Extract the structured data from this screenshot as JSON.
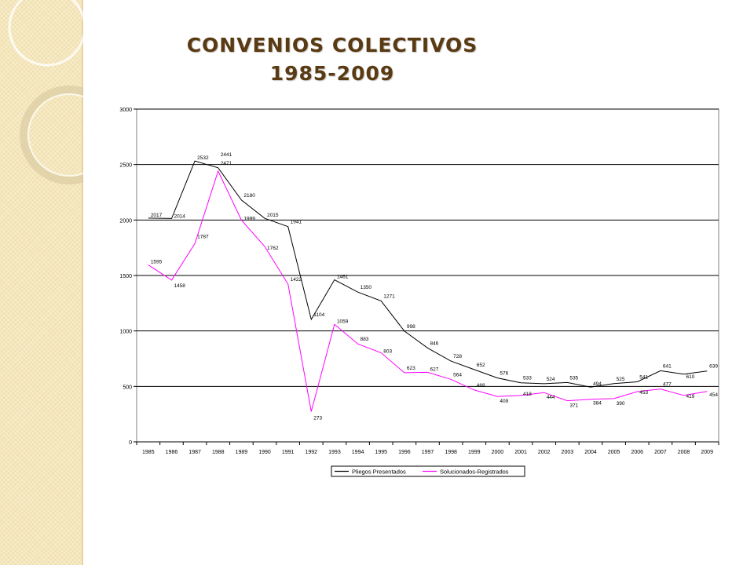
{
  "slide": {
    "title_line1": "CONVENIOS COLECTIVOS",
    "title_line2": "1985-2009"
  },
  "colors": {
    "pliegos": "#000000",
    "solucionados": "#ff00ff",
    "title": "#5a3a12",
    "sidebar": "#f5e7bc"
  },
  "chart_data": {
    "type": "line",
    "title": "",
    "xlabel": "",
    "ylabel": "",
    "ylim": [
      0,
      3000
    ],
    "yticks": [
      0,
      500,
      1000,
      1500,
      2000,
      2500,
      3000
    ],
    "grid": true,
    "legend_position": "bottom",
    "categories": [
      "1985",
      "1986",
      "1987",
      "1988",
      "1989",
      "1990",
      "1991",
      "1992",
      "1993",
      "1994",
      "1995",
      "1996",
      "1997",
      "1998",
      "1999",
      "2000",
      "2001",
      "2002",
      "2003",
      "2004",
      "2005",
      "2006",
      "2007",
      "2008",
      "2009"
    ],
    "series": [
      {
        "name": "Pliegos Presentados",
        "values": [
          2017,
          2014,
          2532,
          2471,
          2180,
          2015,
          1941,
          1104,
          1461,
          1350,
          1271,
          998,
          846,
          728,
          652,
          576,
          533,
          524,
          535,
          494,
          525,
          541,
          641,
          610,
          639
        ],
        "labels": [
          "2017",
          "2014",
          "2532",
          "2471",
          "2180",
          "2015",
          "1941",
          "1104",
          "1461",
          "1350",
          "1271",
          "998",
          "846",
          "728",
          "652",
          "576",
          "533",
          "524",
          "535",
          "494",
          "525",
          "541",
          "641",
          "610",
          "639"
        ]
      },
      {
        "name": "Solucionados-Registrados",
        "values": [
          1595,
          1458,
          1787,
          2441,
          1999,
          1762,
          1422,
          273,
          1059,
          883,
          803,
          623,
          627,
          564,
          468,
          409,
          418,
          444,
          371,
          384,
          390,
          453,
          477,
          419,
          454
        ],
        "labels": [
          "1595",
          "1458",
          "1787",
          "2441",
          "1999",
          "1762",
          "1422",
          "273",
          "1059",
          "883",
          "803",
          "623",
          "627",
          "564",
          "468",
          "409",
          "418",
          "444",
          "371",
          "384",
          "390",
          "453",
          "477",
          "419",
          "454"
        ]
      }
    ]
  }
}
